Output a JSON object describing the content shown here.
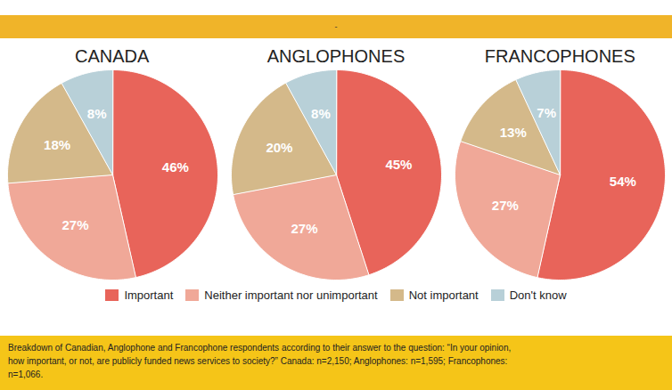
{
  "title": "-",
  "caption": "Breakdown of Canadian, Anglophone and Francophone respondents according to their answer to the question: “In your opinion,\nhow important, or not, are publicly funded news services to society?” Canada: n=2,150; Anglophones: n=1,595; Francophones:\nn=1,066.",
  "chart_data": [
    {
      "type": "pie",
      "title": "CANADA",
      "categories": [
        "Important",
        "Neither important nor unimportant",
        "Not important",
        "Don't know"
      ],
      "values": [
        46,
        27,
        18,
        8
      ],
      "value_labels": [
        "46%",
        "27%",
        "18%",
        "8%"
      ],
      "colors": [
        "#e8645a",
        "#f0a898",
        "#d4b98a",
        "#b8d0d8"
      ],
      "data_labels": true,
      "legend": "bottom"
    },
    {
      "type": "pie",
      "title": "ANGLOPHONES",
      "categories": [
        "Important",
        "Neither important nor unimportant",
        "Not important",
        "Don't know"
      ],
      "values": [
        45,
        27,
        20,
        8
      ],
      "value_labels": [
        "45%",
        "27%",
        "20%",
        "8%"
      ],
      "colors": [
        "#e8645a",
        "#f0a898",
        "#d4b98a",
        "#b8d0d8"
      ],
      "data_labels": true,
      "legend": "bottom"
    },
    {
      "type": "pie",
      "title": "FRANCOPHONES",
      "categories": [
        "Important",
        "Neither important nor unimportant",
        "Not important",
        "Don't know"
      ],
      "values": [
        54,
        27,
        13,
        7
      ],
      "value_labels": [
        "54%",
        "27%",
        "13%",
        "7%"
      ],
      "colors": [
        "#e8645a",
        "#f0a898",
        "#d4b98a",
        "#b8d0d8"
      ],
      "data_labels": true,
      "legend": "bottom"
    }
  ]
}
